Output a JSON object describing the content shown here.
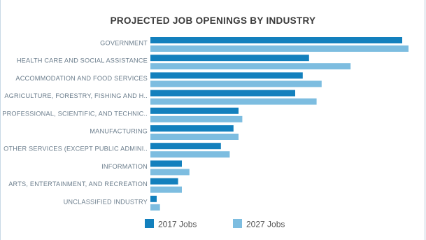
{
  "chart_data": {
    "type": "bar",
    "orientation": "horizontal",
    "title": "PROJECTED JOB OPENINGS BY INDUSTRY",
    "categories": [
      "GOVERNMENT",
      "HEALTH CARE AND SOCIAL ASSISTANCE",
      "ACCOMMODATION AND FOOD SERVICES",
      "AGRICULTURE, FORESTRY, FISHING AND H..",
      "PROFESSIONAL, SCIENTIFIC, AND TECHNIC..",
      "MANUFACTURING",
      "OTHER SERVICES (EXCEPT PUBLIC ADMINI..",
      "INFORMATION",
      "ARTS, ENTERTAINMENT, AND RECREATION",
      "UNCLASSIFIED INDUSTRY"
    ],
    "series": [
      {
        "name": "2017 Jobs",
        "color": "#1380bd",
        "values": [
          100,
          63,
          60.5,
          57.5,
          35,
          33,
          28,
          12.5,
          11,
          2.5
        ]
      },
      {
        "name": "2027 Jobs",
        "color": "#7dbde0",
        "values": [
          102.5,
          79.5,
          68,
          66,
          36.5,
          35,
          31.5,
          15.5,
          12.5,
          3.8
        ]
      }
    ],
    "xlim": [
      0,
      105
    ],
    "grid": false,
    "legend_position": "bottom",
    "xlabel": "",
    "ylabel": ""
  }
}
